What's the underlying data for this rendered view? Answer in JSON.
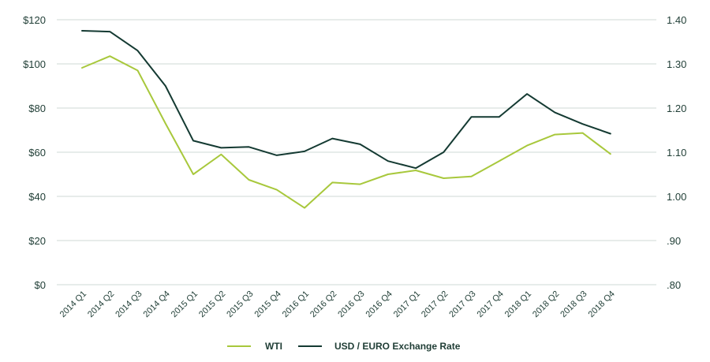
{
  "chart_data": {
    "type": "line",
    "categories": [
      "2014 Q1",
      "2014 Q2",
      "2014 Q3",
      "2014 Q4",
      "2015 Q1",
      "2015 Q2",
      "2015 Q3",
      "2015 Q4",
      "2016 Q1",
      "2016 Q2",
      "2016 Q3",
      "2016 Q4",
      "2017 Q1",
      "2017 Q2",
      "2017 Q3",
      "2017 Q4",
      "2018 Q1",
      "2018 Q2",
      "2018 Q3",
      "2018 Q4"
    ],
    "left_axis": {
      "ylim": [
        0,
        120
      ],
      "ticks": [
        0,
        20,
        40,
        60,
        80,
        100,
        120
      ],
      "tick_labels": [
        "$0",
        "$20",
        "$40",
        "$60",
        "$80",
        "$100",
        "$120"
      ]
    },
    "right_axis": {
      "ylim": [
        0.8,
        1.4
      ],
      "ticks": [
        0.8,
        0.9,
        1.0,
        1.1,
        1.2,
        1.3,
        1.4
      ],
      "tick_labels": [
        ".80",
        ".90",
        "1.00",
        "1.10",
        "1.20",
        "1.30",
        "1.40"
      ]
    },
    "series": [
      {
        "name": "WTI",
        "axis": "left",
        "color": "#a8c83c",
        "values": [
          98.2,
          103.5,
          97.0,
          73.0,
          50.0,
          59.0,
          47.5,
          43.0,
          34.8,
          46.3,
          45.5,
          50.0,
          51.8,
          48.2,
          49.0,
          56.0,
          63.0,
          68.0,
          68.7,
          59.2
        ]
      },
      {
        "name": "USD / EURO Exchange Rate",
        "axis": "right",
        "color": "#143a32",
        "values": [
          1.375,
          1.373,
          1.33,
          1.25,
          1.126,
          1.11,
          1.112,
          1.093,
          1.102,
          1.131,
          1.118,
          1.08,
          1.064,
          1.1,
          1.18,
          1.18,
          1.232,
          1.19,
          1.164,
          1.142
        ]
      }
    ],
    "title": "",
    "xlabel": "",
    "ylabel": "",
    "grid": true,
    "legend": "bottom-center"
  }
}
